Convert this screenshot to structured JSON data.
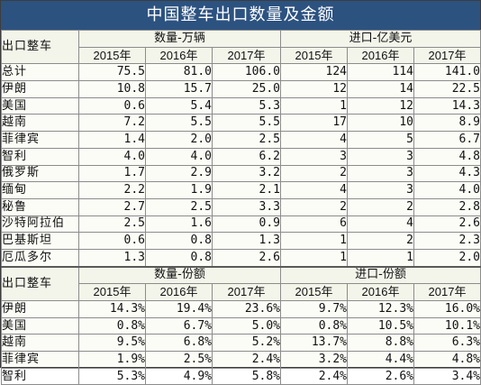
{
  "title": "中国整车出口数量及金额",
  "section1": {
    "row_header": "出口整车",
    "groups": [
      "数量-万辆",
      "进口-亿美元"
    ],
    "years": [
      "2015年",
      "2016年",
      "2017年",
      "2015年",
      "2016年",
      "2017年"
    ],
    "rows": [
      {
        "label": "总计",
        "values": [
          "75.5",
          "81.0",
          "106.0",
          "124",
          "114",
          "141.0"
        ]
      },
      {
        "label": "伊朗",
        "values": [
          "10.8",
          "15.7",
          "25.0",
          "12",
          "14",
          "22.5"
        ]
      },
      {
        "label": "美国",
        "values": [
          "0.6",
          "5.4",
          "5.3",
          "1",
          "12",
          "14.3"
        ]
      },
      {
        "label": "越南",
        "values": [
          "7.2",
          "5.5",
          "5.5",
          "17",
          "10",
          "8.9"
        ]
      },
      {
        "label": "菲律宾",
        "values": [
          "1.4",
          "2.0",
          "2.5",
          "4",
          "5",
          "6.7"
        ]
      },
      {
        "label": "智利",
        "values": [
          "4.0",
          "4.0",
          "6.2",
          "3",
          "3",
          "4.8"
        ]
      },
      {
        "label": "俄罗斯",
        "values": [
          "1.7",
          "2.9",
          "3.2",
          "2",
          "3",
          "4.3"
        ]
      },
      {
        "label": "缅甸",
        "values": [
          "2.2",
          "1.9",
          "2.1",
          "4",
          "3",
          "4.0"
        ]
      },
      {
        "label": "秘鲁",
        "values": [
          "2.7",
          "2.5",
          "3.3",
          "2",
          "2",
          "2.8"
        ]
      },
      {
        "label": "沙特阿拉伯",
        "values": [
          "2.5",
          "1.6",
          "0.9",
          "6",
          "4",
          "2.6"
        ]
      },
      {
        "label": "巴基斯坦",
        "values": [
          "0.6",
          "0.8",
          "1.3",
          "1",
          "2",
          "2.3"
        ]
      },
      {
        "label": "厄瓜多尔",
        "values": [
          "1.3",
          "0.8",
          "2.6",
          "1",
          "1",
          "2.0"
        ]
      }
    ]
  },
  "section2": {
    "row_header": "出口整车",
    "groups": [
      "数量-份额",
      "进口-份额"
    ],
    "years": [
      "2015年",
      "2016年",
      "2017年",
      "2015年",
      "2016年",
      "2017年"
    ],
    "rows": [
      {
        "label": "伊朗",
        "values": [
          "14.3%",
          "19.4%",
          "23.6%",
          "9.7%",
          "12.3%",
          "16.0%"
        ]
      },
      {
        "label": "美国",
        "values": [
          "0.8%",
          "6.7%",
          "5.0%",
          "0.8%",
          "10.5%",
          "10.1%"
        ]
      },
      {
        "label": "越南",
        "values": [
          "9.5%",
          "6.8%",
          "5.2%",
          "13.7%",
          "8.8%",
          "6.3%"
        ]
      },
      {
        "label": "菲律宾",
        "values": [
          "1.9%",
          "2.5%",
          "2.4%",
          "3.2%",
          "4.4%",
          "4.8%"
        ]
      },
      {
        "label": "智利",
        "values": [
          "5.3%",
          "4.9%",
          "5.8%",
          "2.4%",
          "2.6%",
          "3.4%"
        ]
      }
    ]
  }
}
